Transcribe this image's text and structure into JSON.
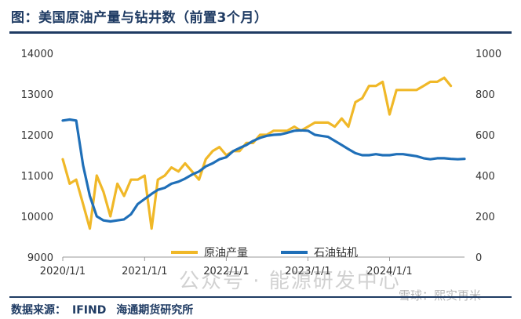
{
  "header": {
    "title": "图：美国原油产量与钻井数（前置3个月）"
  },
  "footer": {
    "source_label": "数据来源：",
    "source_value": "IFIND",
    "institution": "海通期货研究所"
  },
  "watermarks": {
    "main": "公众号 · 能源研发中心",
    "secondary": "雪球：熙实再米"
  },
  "colors": {
    "production": "#f0b828",
    "rigs": "#1f6fb8",
    "axis": "#555555",
    "accent": "#1f3b63"
  },
  "chart_data": {
    "type": "line",
    "x_ticks": [
      "2020/1/1",
      "2021/1/1",
      "2022/1/1",
      "2023/1/1",
      "2024/1/1"
    ],
    "x_range": [
      "2020/1/1",
      "2024/12/1"
    ],
    "y_left": {
      "ticks": [
        "9000",
        "10000",
        "11000",
        "12000",
        "13000",
        "14000"
      ],
      "range": [
        9000,
        14000
      ]
    },
    "y_right": {
      "ticks": [
        "0",
        "200",
        "400",
        "600",
        "800",
        "1000"
      ],
      "range": [
        0,
        1000
      ]
    },
    "legend": [
      "原油产量",
      "石油钻机"
    ],
    "legend_position": "bottom-right",
    "series": [
      {
        "name": "原油产量",
        "axis": "left",
        "color": "#f0b828",
        "points": [
          [
            "2020/1/1",
            11400
          ],
          [
            "2020/2/1",
            10800
          ],
          [
            "2020/3/1",
            10900
          ],
          [
            "2020/4/1",
            10300
          ],
          [
            "2020/5/1",
            9700
          ],
          [
            "2020/6/1",
            11000
          ],
          [
            "2020/7/1",
            10600
          ],
          [
            "2020/8/1",
            10000
          ],
          [
            "2020/9/1",
            10800
          ],
          [
            "2020/10/1",
            10500
          ],
          [
            "2020/11/1",
            10900
          ],
          [
            "2020/12/1",
            10900
          ],
          [
            "2021/1/1",
            11000
          ],
          [
            "2021/2/1",
            9700
          ],
          [
            "2021/3/1",
            10900
          ],
          [
            "2021/4/1",
            11000
          ],
          [
            "2021/5/1",
            11200
          ],
          [
            "2021/6/1",
            11100
          ],
          [
            "2021/7/1",
            11300
          ],
          [
            "2021/8/1",
            11100
          ],
          [
            "2021/9/1",
            10900
          ],
          [
            "2021/10/1",
            11400
          ],
          [
            "2021/11/1",
            11600
          ],
          [
            "2021/12/1",
            11700
          ],
          [
            "2022/1/1",
            11500
          ],
          [
            "2022/2/1",
            11600
          ],
          [
            "2022/3/1",
            11600
          ],
          [
            "2022/4/1",
            11800
          ],
          [
            "2022/5/1",
            11800
          ],
          [
            "2022/6/1",
            12000
          ],
          [
            "2022/7/1",
            12000
          ],
          [
            "2022/8/1",
            12100
          ],
          [
            "2022/9/1",
            12100
          ],
          [
            "2022/10/1",
            12100
          ],
          [
            "2022/11/1",
            12200
          ],
          [
            "2022/12/1",
            12100
          ],
          [
            "2023/1/1",
            12200
          ],
          [
            "2023/2/1",
            12300
          ],
          [
            "2023/3/1",
            12300
          ],
          [
            "2023/4/1",
            12300
          ],
          [
            "2023/5/1",
            12200
          ],
          [
            "2023/6/1",
            12400
          ],
          [
            "2023/7/1",
            12200
          ],
          [
            "2023/8/1",
            12800
          ],
          [
            "2023/9/1",
            12900
          ],
          [
            "2023/10/1",
            13200
          ],
          [
            "2023/11/1",
            13200
          ],
          [
            "2023/12/1",
            13300
          ],
          [
            "2024/1/1",
            12500
          ],
          [
            "2024/2/1",
            13100
          ],
          [
            "2024/3/1",
            13100
          ],
          [
            "2024/4/1",
            13100
          ],
          [
            "2024/5/1",
            13100
          ],
          [
            "2024/6/1",
            13200
          ],
          [
            "2024/7/1",
            13300
          ],
          [
            "2024/8/1",
            13300
          ],
          [
            "2024/9/1",
            13400
          ],
          [
            "2024/10/1",
            13200
          ]
        ]
      },
      {
        "name": "石油钻机",
        "axis": "right",
        "color": "#1f6fb8",
        "points": [
          [
            "2020/1/1",
            670
          ],
          [
            "2020/2/1",
            675
          ],
          [
            "2020/3/1",
            670
          ],
          [
            "2020/4/1",
            450
          ],
          [
            "2020/5/1",
            300
          ],
          [
            "2020/6/1",
            200
          ],
          [
            "2020/7/1",
            180
          ],
          [
            "2020/8/1",
            175
          ],
          [
            "2020/9/1",
            180
          ],
          [
            "2020/10/1",
            185
          ],
          [
            "2020/11/1",
            210
          ],
          [
            "2020/12/1",
            260
          ],
          [
            "2021/1/1",
            285
          ],
          [
            "2021/2/1",
            310
          ],
          [
            "2021/3/1",
            330
          ],
          [
            "2021/4/1",
            340
          ],
          [
            "2021/5/1",
            360
          ],
          [
            "2021/6/1",
            370
          ],
          [
            "2021/7/1",
            385
          ],
          [
            "2021/8/1",
            405
          ],
          [
            "2021/9/1",
            420
          ],
          [
            "2021/10/1",
            445
          ],
          [
            "2021/11/1",
            460
          ],
          [
            "2021/12/1",
            480
          ],
          [
            "2022/1/1",
            490
          ],
          [
            "2022/2/1",
            520
          ],
          [
            "2022/3/1",
            535
          ],
          [
            "2022/4/1",
            550
          ],
          [
            "2022/5/1",
            570
          ],
          [
            "2022/6/1",
            585
          ],
          [
            "2022/7/1",
            595
          ],
          [
            "2022/8/1",
            600
          ],
          [
            "2022/9/1",
            602
          ],
          [
            "2022/10/1",
            610
          ],
          [
            "2022/11/1",
            620
          ],
          [
            "2022/12/1",
            622
          ],
          [
            "2023/1/1",
            620
          ],
          [
            "2023/2/1",
            600
          ],
          [
            "2023/3/1",
            595
          ],
          [
            "2023/4/1",
            590
          ],
          [
            "2023/5/1",
            570
          ],
          [
            "2023/6/1",
            550
          ],
          [
            "2023/7/1",
            530
          ],
          [
            "2023/8/1",
            510
          ],
          [
            "2023/9/1",
            500
          ],
          [
            "2023/10/1",
            500
          ],
          [
            "2023/11/1",
            505
          ],
          [
            "2023/12/1",
            500
          ],
          [
            "2024/1/1",
            500
          ],
          [
            "2024/2/1",
            505
          ],
          [
            "2024/3/1",
            505
          ],
          [
            "2024/4/1",
            500
          ],
          [
            "2024/5/1",
            495
          ],
          [
            "2024/6/1",
            485
          ],
          [
            "2024/7/1",
            480
          ],
          [
            "2024/8/1",
            485
          ],
          [
            "2024/9/1",
            485
          ],
          [
            "2024/10/1",
            482
          ],
          [
            "2024/11/1",
            480
          ],
          [
            "2024/12/1",
            482
          ]
        ]
      }
    ]
  }
}
